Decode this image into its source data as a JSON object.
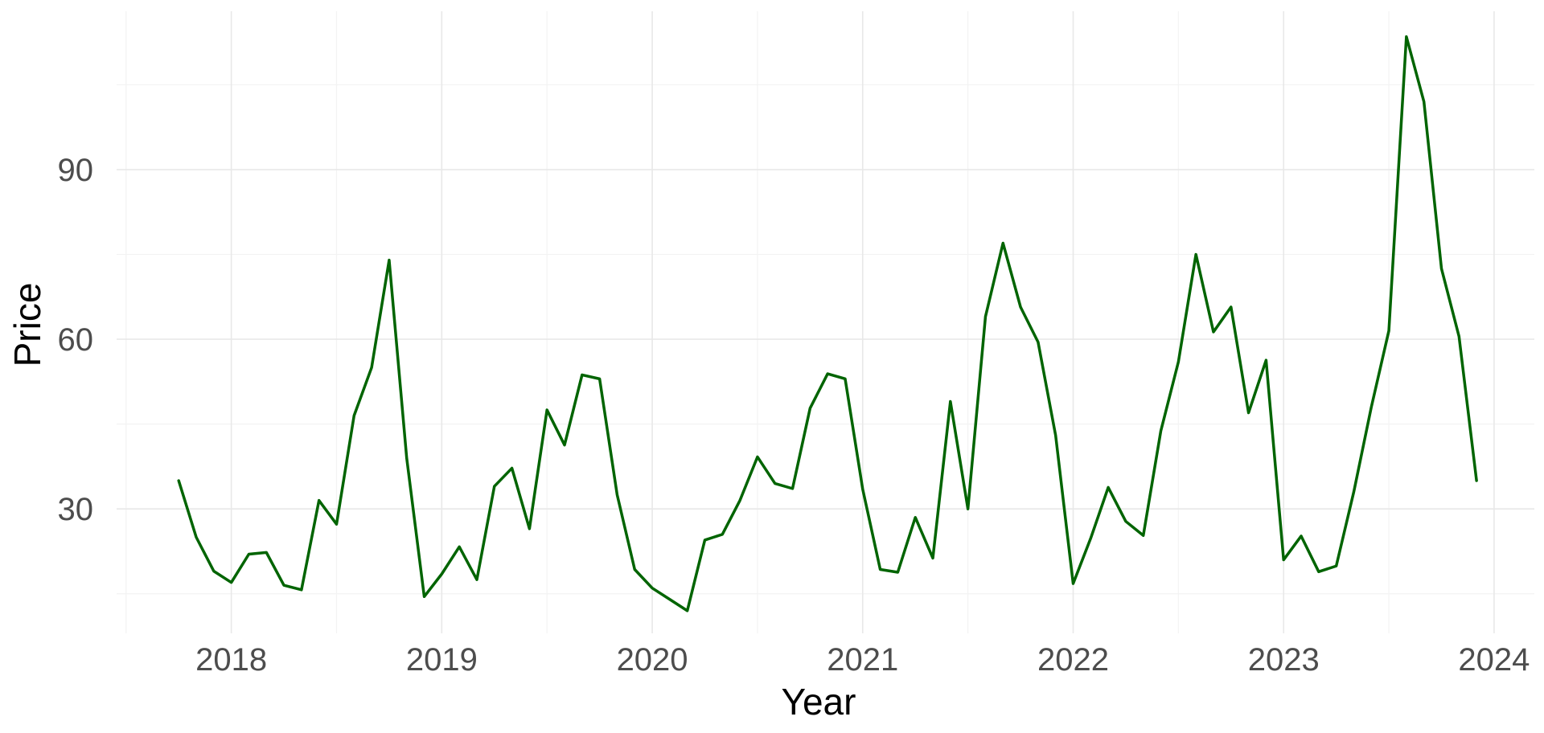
{
  "chart_data": {
    "type": "line",
    "xlabel": "Year",
    "ylabel": "Price",
    "x_ticks": [
      "2018",
      "2019",
      "2020",
      "2021",
      "2022",
      "2023",
      "2024"
    ],
    "y_ticks": [
      "30",
      "60",
      "90"
    ],
    "xlim": [
      "2017-06-15",
      "2024-03-10"
    ],
    "ylim": [
      8,
      118
    ],
    "grid": true,
    "line_color": "#006400",
    "series": [
      {
        "x": [
          "2017-10",
          "2017-11",
          "2017-12",
          "2018-01",
          "2018-02",
          "2018-03",
          "2018-04",
          "2018-05",
          "2018-06",
          "2018-07",
          "2018-08",
          "2018-09",
          "2018-10",
          "2018-11",
          "2018-12",
          "2019-01",
          "2019-02",
          "2019-03",
          "2019-04",
          "2019-05",
          "2019-06",
          "2019-07",
          "2019-08",
          "2019-09",
          "2019-10",
          "2019-11",
          "2019-12",
          "2020-01",
          "2020-02",
          "2020-03",
          "2020-04",
          "2020-05",
          "2020-06",
          "2020-07",
          "2020-08",
          "2020-09",
          "2020-10",
          "2020-11",
          "2020-12",
          "2021-01",
          "2021-02",
          "2021-03",
          "2021-04",
          "2021-05",
          "2021-06",
          "2021-07",
          "2021-08",
          "2021-09",
          "2021-10",
          "2021-11",
          "2021-12",
          "2022-01",
          "2022-02",
          "2022-03",
          "2022-04",
          "2022-05",
          "2022-06",
          "2022-07",
          "2022-08",
          "2022-09",
          "2022-10",
          "2022-11",
          "2022-12",
          "2023-01",
          "2023-02",
          "2023-03",
          "2023-04",
          "2023-05",
          "2023-06",
          "2023-07",
          "2023-08",
          "2023-09",
          "2023-10",
          "2023-11",
          "2023-12"
        ],
        "y": [
          35,
          25,
          19,
          17,
          22,
          22.3,
          16.5,
          15.7,
          31.5,
          27.3,
          46.5,
          55,
          74,
          39,
          14.5,
          18.5,
          23.3,
          17.5,
          34,
          37.2,
          26.5,
          47.5,
          41.3,
          53.7,
          53,
          32.5,
          19.3,
          16,
          14,
          12,
          24.5,
          25.5,
          31.5,
          39.2,
          34.5,
          33.6,
          47.8,
          53.9,
          53,
          33.5,
          19.3,
          18.8,
          28.5,
          21.3,
          49,
          30,
          64,
          77,
          65.7,
          59.5,
          43,
          16.8,
          24.8,
          33.8,
          27.8,
          25.3,
          43.8,
          56,
          75,
          61.3,
          65.7,
          47,
          56.3,
          21,
          25.2,
          18.9,
          19.9,
          33,
          48,
          61.5,
          113.5,
          102,
          72.5,
          60.5,
          35
        ]
      }
    ]
  }
}
